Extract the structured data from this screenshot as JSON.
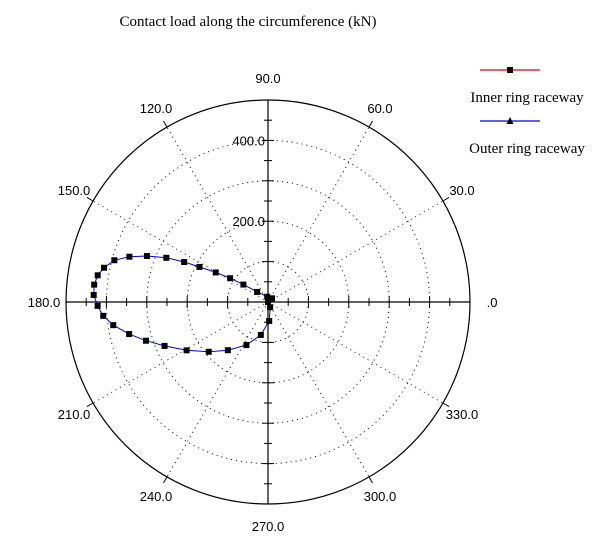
{
  "chart_data": {
    "type": "polar-line",
    "title": "Contact load along the circumference (kN)",
    "angle_tick_labels": [
      "90.0",
      "120.0",
      "60.0",
      "150.0",
      "30.0",
      "180.0",
      ".0",
      "210.0",
      "330.0",
      "240.0",
      "300.0",
      "270.0"
    ],
    "angle_tick_values": [
      90,
      120,
      60,
      150,
      30,
      180,
      0,
      210,
      330,
      240,
      300,
      270
    ],
    "radial_tick_labels": [
      "400.0",
      "200.0"
    ],
    "radial_tick_values": [
      400,
      200
    ],
    "r_max": 500,
    "grid": true,
    "legend_position": "top-right",
    "series": [
      {
        "name": "Inner ring raceway",
        "color": "#e60000",
        "marker": "square",
        "points": [
          {
            "angle": 0,
            "r": 0
          },
          {
            "angle": 42.2,
            "r": 13.5
          },
          {
            "angle": 98.6,
            "r": 13.2
          },
          {
            "angle": 137.0,
            "r": 36.6
          },
          {
            "angle": 144.7,
            "r": 74.6
          },
          {
            "angle": 147.9,
            "r": 110.7
          },
          {
            "angle": 150.5,
            "r": 148.6
          },
          {
            "angle": 152.9,
            "r": 190.6
          },
          {
            "angle": 154.5,
            "r": 230.0
          },
          {
            "angle": 156.5,
            "r": 274.4
          },
          {
            "angle": 159.2,
            "r": 320.6
          },
          {
            "angle": 161.9,
            "r": 360.9
          },
          {
            "angle": 164.8,
            "r": 394.1
          },
          {
            "angle": 168.2,
            "r": 414.6
          },
          {
            "angle": 171.1,
            "r": 426.7
          },
          {
            "angle": 174.3,
            "r": 432.4
          },
          {
            "angle": 177.7,
            "r": 431.8
          },
          {
            "angle": 181.3,
            "r": 421.8
          },
          {
            "angle": 184.8,
            "r": 409.3
          },
          {
            "angle": 188.5,
            "r": 387.3
          },
          {
            "angle": 193.0,
            "r": 352.7
          },
          {
            "angle": 197.6,
            "r": 316.9
          },
          {
            "angle": 203.0,
            "r": 278.1
          },
          {
            "angle": 210.7,
            "r": 234.4
          },
          {
            "angle": 220.0,
            "r": 191.6
          },
          {
            "angle": 230.2,
            "r": 155.3
          },
          {
            "angle": 243.4,
            "r": 119.3
          },
          {
            "angle": 257.7,
            "r": 83.4
          },
          {
            "angle": 273.6,
            "r": 47.2
          },
          {
            "angle": 292.4,
            "r": 14.1
          },
          {
            "angle": 0,
            "r": 0
          }
        ]
      },
      {
        "name": "Outer ring raceway",
        "color": "#0000e6",
        "marker": "triangle",
        "points": []
      }
    ]
  }
}
